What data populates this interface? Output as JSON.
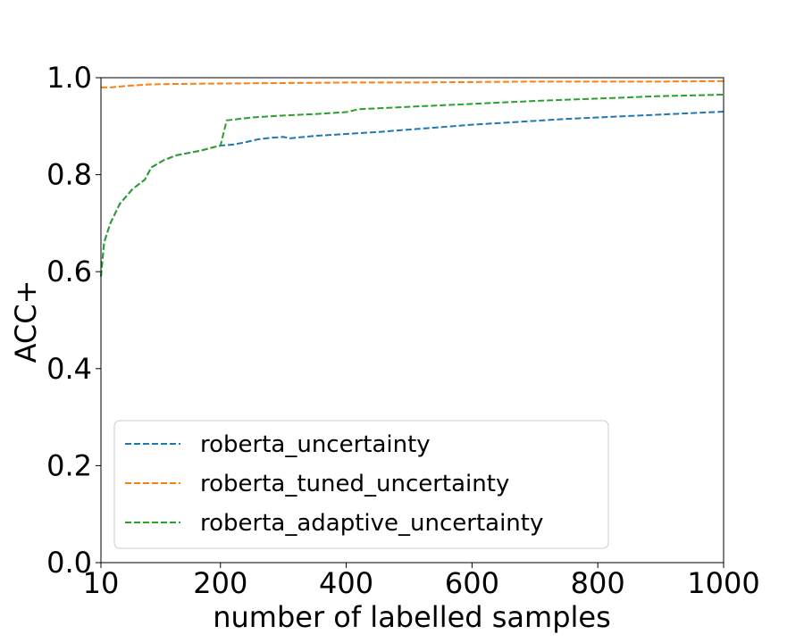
{
  "chart_data": {
    "type": "line",
    "title": "",
    "xlabel": "number of labelled samples",
    "ylabel": "ACC+",
    "xlim": [
      10,
      1000
    ],
    "ylim": [
      0.0,
      1.0
    ],
    "x_ticks": [
      {
        "value": 10,
        "label": "10"
      },
      {
        "value": 200,
        "label": "200"
      },
      {
        "value": 400,
        "label": "400"
      },
      {
        "value": 600,
        "label": "600"
      },
      {
        "value": 800,
        "label": "800"
      },
      {
        "value": 1000,
        "label": "1000"
      }
    ],
    "y_ticks": [
      {
        "value": 0.0,
        "label": "0.0"
      },
      {
        "value": 0.2,
        "label": "0.2"
      },
      {
        "value": 0.4,
        "label": "0.4"
      },
      {
        "value": 0.6,
        "label": "0.6"
      },
      {
        "value": 0.8,
        "label": "0.8"
      },
      {
        "value": 1.0,
        "label": "1.0"
      }
    ],
    "grid": false,
    "legend_position": "lower-left",
    "series": [
      {
        "name": "roberta_uncertainty",
        "color": "#1f77b4",
        "line_style": "dashed",
        "x": [
          10,
          15,
          25,
          40,
          60,
          80,
          90,
          110,
          130,
          150,
          170,
          190,
          200,
          220,
          240,
          260,
          280,
          300,
          310,
          350,
          400,
          450,
          500,
          550,
          600,
          650,
          700,
          750,
          800,
          850,
          900,
          950,
          1000
        ],
        "y": [
          0.59,
          0.66,
          0.7,
          0.74,
          0.77,
          0.79,
          0.815,
          0.83,
          0.84,
          0.845,
          0.85,
          0.857,
          0.86,
          0.862,
          0.867,
          0.873,
          0.876,
          0.878,
          0.875,
          0.88,
          0.884,
          0.888,
          0.893,
          0.898,
          0.903,
          0.907,
          0.911,
          0.915,
          0.918,
          0.921,
          0.924,
          0.927,
          0.93
        ]
      },
      {
        "name": "roberta_tuned_uncertainty",
        "color": "#ff7f0e",
        "line_style": "dashed",
        "x": [
          10,
          25,
          50,
          85,
          120,
          200,
          300,
          400,
          500,
          600,
          700,
          800,
          900,
          1000
        ],
        "y": [
          0.98,
          0.98,
          0.983,
          0.986,
          0.987,
          0.988,
          0.989,
          0.99,
          0.99,
          0.991,
          0.992,
          0.992,
          0.992,
          0.993
        ]
      },
      {
        "name": "roberta_adaptive_uncertainty",
        "color": "#2ca02c",
        "line_style": "dashed",
        "x": [
          10,
          15,
          25,
          40,
          60,
          80,
          90,
          110,
          130,
          150,
          170,
          190,
          200,
          210,
          250,
          300,
          350,
          400,
          420,
          500,
          600,
          700,
          800,
          900,
          1000
        ],
        "y": [
          0.59,
          0.66,
          0.7,
          0.74,
          0.77,
          0.79,
          0.815,
          0.83,
          0.84,
          0.845,
          0.85,
          0.857,
          0.86,
          0.912,
          0.918,
          0.922,
          0.925,
          0.929,
          0.935,
          0.94,
          0.946,
          0.952,
          0.957,
          0.962,
          0.965
        ]
      }
    ]
  }
}
